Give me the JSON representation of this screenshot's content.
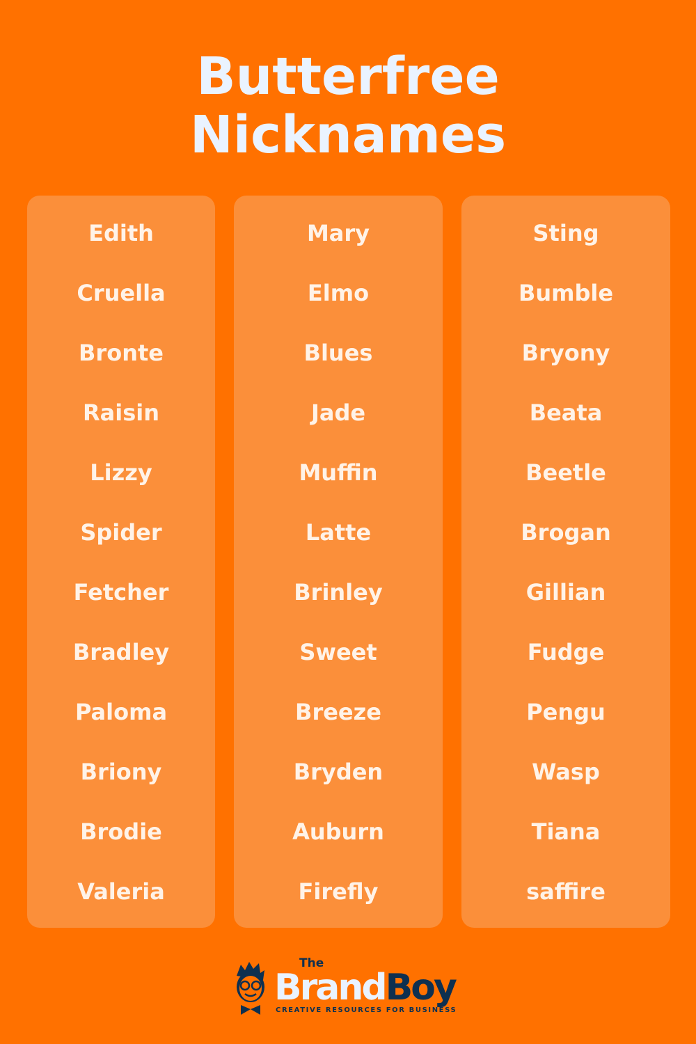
{
  "title_line1": "Butterfree",
  "title_line2": "Nicknames",
  "columns": [
    [
      "Edith",
      "Cruella",
      "Bronte",
      "Raisin",
      "Lizzy",
      "Spider",
      "Fetcher",
      "Bradley",
      "Paloma",
      "Briony",
      "Brodie",
      "Valeria"
    ],
    [
      "Mary",
      "Elmo",
      "Blues",
      "Jade",
      "Muffin",
      "Latte",
      "Brinley",
      "Sweet",
      "Breeze",
      "Bryden",
      "Auburn",
      "Firefly"
    ],
    [
      "Sting",
      "Bumble",
      "Bryony",
      "Beata",
      "Beetle",
      "Brogan",
      "Gillian",
      "Fudge",
      "Pengu",
      "Wasp",
      "Tiana",
      "saffire"
    ]
  ],
  "logo": {
    "the": "The",
    "brand": "Brand",
    "boy": "Boy",
    "tagline": "CREATIVE RESOURCES FOR BUSINESS"
  },
  "colors": {
    "background": "#FF7100",
    "card": "#FB8F3A",
    "title": "#EAF3FF",
    "logo_dark": "#0E3050"
  }
}
